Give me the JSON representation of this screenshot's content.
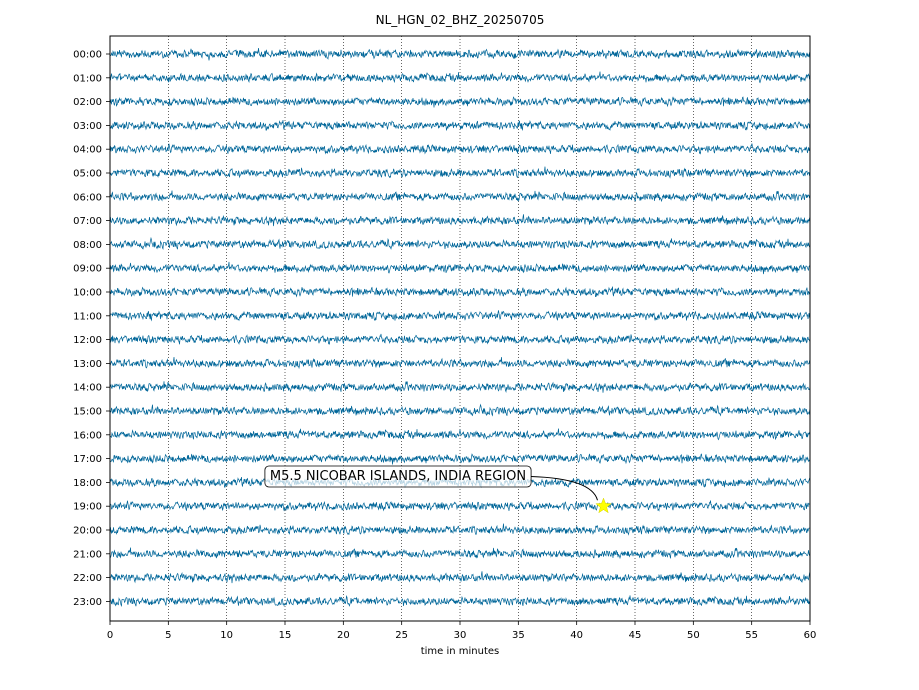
{
  "chart_data": {
    "type": "line",
    "title": "NL_HGN_02_BHZ_20250705",
    "xlabel": "time in minutes",
    "ylabel": "",
    "xlim": [
      0,
      60
    ],
    "xticks": [
      0,
      5,
      10,
      15,
      20,
      25,
      30,
      35,
      40,
      45,
      50,
      55,
      60
    ],
    "row_labels": [
      "00:00",
      "01:00",
      "02:00",
      "03:00",
      "04:00",
      "05:00",
      "06:00",
      "07:00",
      "08:00",
      "09:00",
      "10:00",
      "11:00",
      "12:00",
      "13:00",
      "14:00",
      "15:00",
      "16:00",
      "17:00",
      "18:00",
      "19:00",
      "20:00",
      "21:00",
      "22:00",
      "23:00"
    ],
    "grid": "vertical dotted",
    "trace_color": "#006699",
    "annotation": {
      "text": "M5.5 NICOBAR ISLANDS, INDIA REGION",
      "row": "19:00",
      "minute": 42.3,
      "marker": "star",
      "marker_color": "#ffff00"
    }
  }
}
